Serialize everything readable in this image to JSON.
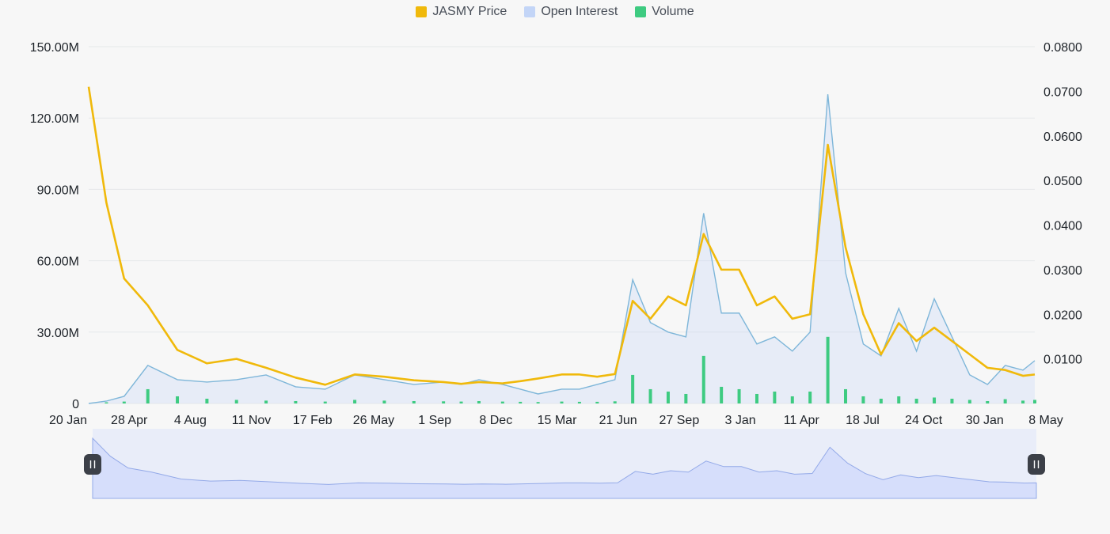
{
  "legend": {
    "price": "JASMY Price",
    "open_interest": "Open Interest",
    "volume": "Volume"
  },
  "colors": {
    "price": "#f0b90b",
    "open_interest_line": "#7eb6d9",
    "open_interest_fill": "#c9d8f7",
    "open_interest_legend": "#c3d5f7",
    "volume": "#3ecb81",
    "navigator_fill": "#d6defb",
    "navigator_line": "#93a9e8",
    "handle": "#3c4048"
  },
  "chart_data": {
    "type": "line",
    "x_labels": [
      "20 Jan",
      "28 Apr",
      "4 Aug",
      "11 Nov",
      "17 Feb",
      "26 May",
      "1 Sep",
      "8 Dec",
      "15 Mar",
      "21 Jun",
      "27 Sep",
      "3 Jan",
      "11 Apr",
      "18 Jul",
      "24 Oct",
      "30 Jan",
      "8 May"
    ],
    "y_left": {
      "ticks": [
        "0",
        "30.00M",
        "60.00M",
        "90.00M",
        "120.00M",
        "150.00M"
      ],
      "range": [
        0,
        150000000
      ]
    },
    "y_right": {
      "ticks": [
        "0.0100",
        "0.0200",
        "0.0300",
        "0.0400",
        "0.0500",
        "0.0600",
        "0.0700",
        "0.0800"
      ],
      "range": [
        0,
        0.08
      ]
    },
    "grid": "horizontal",
    "legend_position": "top-center",
    "x": [
      0,
      0.3,
      0.6,
      1,
      1.5,
      2,
      2.5,
      3,
      3.5,
      4,
      4.5,
      5,
      5.5,
      6,
      6.3,
      6.6,
      7,
      7.3,
      7.6,
      8,
      8.3,
      8.6,
      8.9,
      9.2,
      9.5,
      9.8,
      10.1,
      10.4,
      10.7,
      11,
      11.3,
      11.6,
      11.9,
      12.2,
      12.5,
      12.8,
      13.1,
      13.4,
      13.7,
      14,
      14.3,
      14.6,
      14.9,
      15.2,
      15.5,
      15.8,
      16
    ],
    "series": [
      {
        "name": "JASMY Price",
        "axis": "right",
        "values": [
          0.071,
          0.045,
          0.028,
          0.022,
          0.012,
          0.009,
          0.01,
          0.008,
          0.0058,
          0.0042,
          0.0065,
          0.006,
          0.0052,
          0.0048,
          0.0044,
          0.0048,
          0.0045,
          0.005,
          0.0056,
          0.0065,
          0.0065,
          0.006,
          0.0066,
          0.023,
          0.019,
          0.024,
          0.022,
          0.038,
          0.03,
          0.03,
          0.022,
          0.024,
          0.019,
          0.02,
          0.058,
          0.035,
          0.02,
          0.011,
          0.018,
          0.014,
          0.017,
          0.014,
          0.011,
          0.008,
          0.0075,
          0.0062,
          0.0065
        ]
      },
      {
        "name": "Open Interest",
        "axis": "left",
        "values": [
          0,
          1000000,
          3000000,
          16000000,
          10000000,
          9000000,
          10000000,
          12000000,
          7000000,
          6000000,
          12000000,
          10000000,
          8000000,
          9000000,
          8000000,
          10000000,
          8000000,
          6000000,
          4000000,
          6000000,
          6000000,
          8000000,
          10000000,
          52000000,
          34000000,
          30000000,
          28000000,
          80000000,
          38000000,
          38000000,
          25000000,
          28000000,
          22000000,
          30000000,
          130000000,
          55000000,
          25000000,
          20000000,
          40000000,
          22000000,
          44000000,
          28000000,
          12000000,
          8000000,
          16000000,
          14000000,
          18000000
        ]
      },
      {
        "name": "Volume",
        "axis": "left",
        "values": [
          0,
          500000,
          800000,
          6000000,
          3000000,
          2000000,
          1500000,
          1200000,
          1000000,
          800000,
          1500000,
          1200000,
          1000000,
          900000,
          800000,
          1000000,
          800000,
          700000,
          600000,
          800000,
          700000,
          700000,
          900000,
          12000000,
          6000000,
          5000000,
          4000000,
          20000000,
          7000000,
          6000000,
          4000000,
          5000000,
          3000000,
          5000000,
          28000000,
          6000000,
          3000000,
          2000000,
          3000000,
          2000000,
          2500000,
          2000000,
          1500000,
          1000000,
          1800000,
          1200000,
          1500000
        ]
      }
    ]
  }
}
